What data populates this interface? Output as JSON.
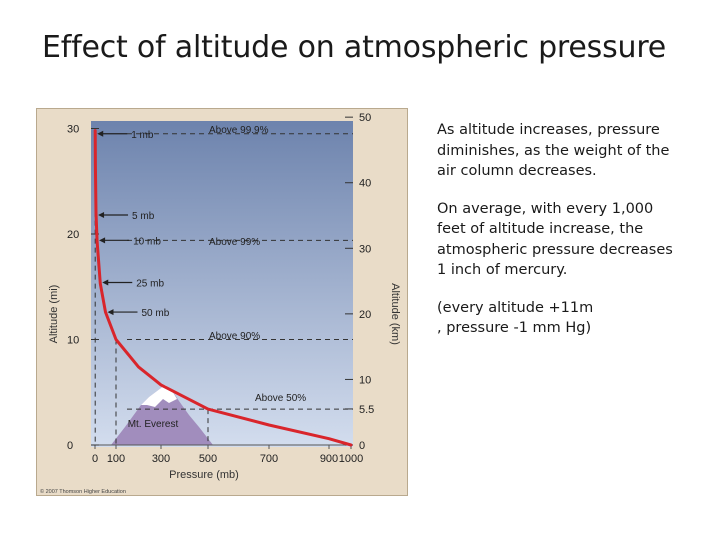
{
  "slide": {
    "title": "Effect of altitude on atmospheric pressure",
    "paragraphs": [
      "As altitude increases, pressure\ndiminishes, as the weight of the\nair column decreases.",
      "On average, with every 1,000\nfeet of altitude increase, the\natmospheric pressure decreases\n1 inch of mercury.",
      "(every altitude +11m\n, pressure -1 mm Hg)"
    ]
  },
  "chart_data": {
    "type": "line",
    "xlabel": "Pressure (mb)",
    "ylabel_left": "Altitude (mi)",
    "ylabel_right": "Altitude (km)",
    "xlim": [
      0,
      1000
    ],
    "ylim_mi": [
      0,
      31
    ],
    "x_ticks": [
      0,
      100,
      300,
      500,
      700,
      900,
      1000
    ],
    "y_ticks_left": [
      0,
      10,
      20,
      30
    ],
    "y_ticks_right": [
      "0",
      "5.5",
      "10",
      "20",
      "30",
      "40",
      "50"
    ],
    "series": [
      {
        "x": [
          1,
          2,
          5,
          10,
          25,
          50,
          100,
          200,
          300,
          500,
          700,
          900,
          1000
        ],
        "y": [
          29.8,
          26.5,
          22,
          19.3,
          15.3,
          12.6,
          10,
          7.4,
          5.7,
          3.4,
          1.9,
          0.6,
          0
        ],
        "color": "#d9252b"
      }
    ],
    "pressure_labels": [
      {
        "text": "1 mb",
        "x": 1,
        "y": 29.5
      },
      {
        "text": "5 mb",
        "x": 5,
        "y": 21.8
      },
      {
        "text": "10 mb",
        "x": 10,
        "y": 19.4
      },
      {
        "text": "25 mb",
        "x": 25,
        "y": 15.4
      },
      {
        "text": "50 mb",
        "x": 50,
        "y": 12.6
      }
    ],
    "threshold_lines": [
      {
        "label": "Above 99.9%",
        "y": 29.5
      },
      {
        "label": "Above 99%",
        "y": 19.4
      },
      {
        "label": "Above 90%",
        "y": 10
      },
      {
        "label": "Above 50%",
        "y": 3.4
      }
    ],
    "mountain_label": "Mt. Everest",
    "copyright": "© 2007 Thomson Higher Education",
    "colors": {
      "sky_top": "#6d83ad",
      "sky_bottom": "#d3ddee",
      "frame": "#e9dcc8",
      "curve": "#d9252b",
      "mountain": "#a18dbd"
    }
  }
}
